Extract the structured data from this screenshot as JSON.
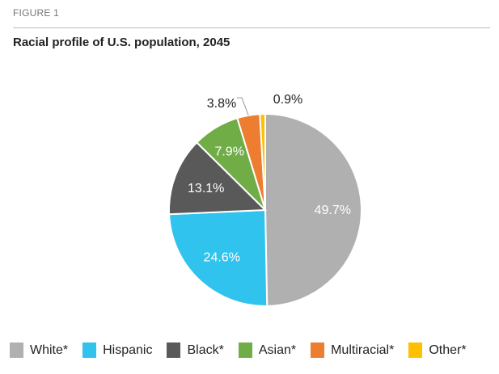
{
  "figure_label": "FIGURE 1",
  "chart_data": {
    "type": "pie",
    "title": "Racial profile of U.S. population, 2045",
    "categories": [
      "White*",
      "Hispanic",
      "Black*",
      "Asian*",
      "Multiracial*",
      "Other*"
    ],
    "values": [
      49.7,
      24.6,
      13.1,
      7.9,
      3.8,
      0.9
    ],
    "labels": [
      "49.7%",
      "24.6%",
      "13.1%",
      "7.9%",
      "3.8%",
      "0.9%"
    ],
    "colors": [
      "#b0b0b0",
      "#30c3ee",
      "#595959",
      "#70ad47",
      "#ed7d31",
      "#ffc000"
    ],
    "legend_position": "bottom"
  }
}
